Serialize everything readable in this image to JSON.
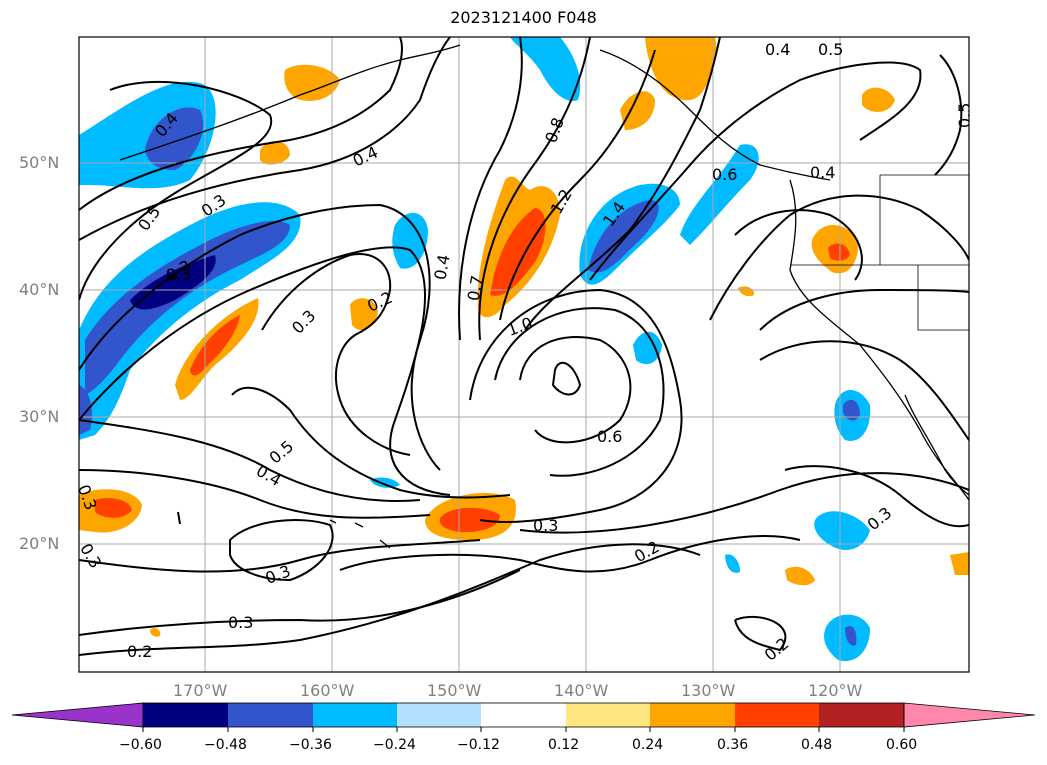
{
  "title": "2023121400 F048",
  "map": {
    "lat_labels": [
      "50°N",
      "40°N",
      "30°N",
      "20°N"
    ],
    "lon_labels": [
      "170°W",
      "160°W",
      "150°W",
      "140°W",
      "130°W",
      "120°W"
    ],
    "contour_labels": [
      "0.4",
      "0.5",
      "0.5",
      "0.4",
      "0.4",
      "0.3",
      "0.5",
      "0.3",
      "0.4",
      "0.2",
      "0.3",
      "0.8",
      "1.2",
      "1.4",
      "0.6",
      "0.4",
      "0.7",
      "1.0",
      "0.6",
      "0.5",
      "0.4",
      "0.3",
      "0.3",
      "0.3",
      "0.3",
      "0.3",
      "0.2",
      "0.2",
      "0.2",
      "0.3",
      "0.3"
    ],
    "colors": {
      "neg_060": "#9933cc",
      "neg_048": "#000080",
      "neg_036": "#3355cc",
      "neg_024": "#00bbff",
      "neg_012": "#b3e0ff",
      "zero": "#ffffff",
      "pos_012": "#ffe680",
      "pos_024": "#ffa500",
      "pos_036": "#ff4000",
      "pos_048": "#b22222",
      "pos_060": "#ff88aa"
    }
  },
  "colorbar": {
    "ticks": [
      "−0.60",
      "−0.48",
      "−0.36",
      "−0.24",
      "−0.12",
      "0.12",
      "0.24",
      "0.36",
      "0.48",
      "0.60"
    ]
  }
}
